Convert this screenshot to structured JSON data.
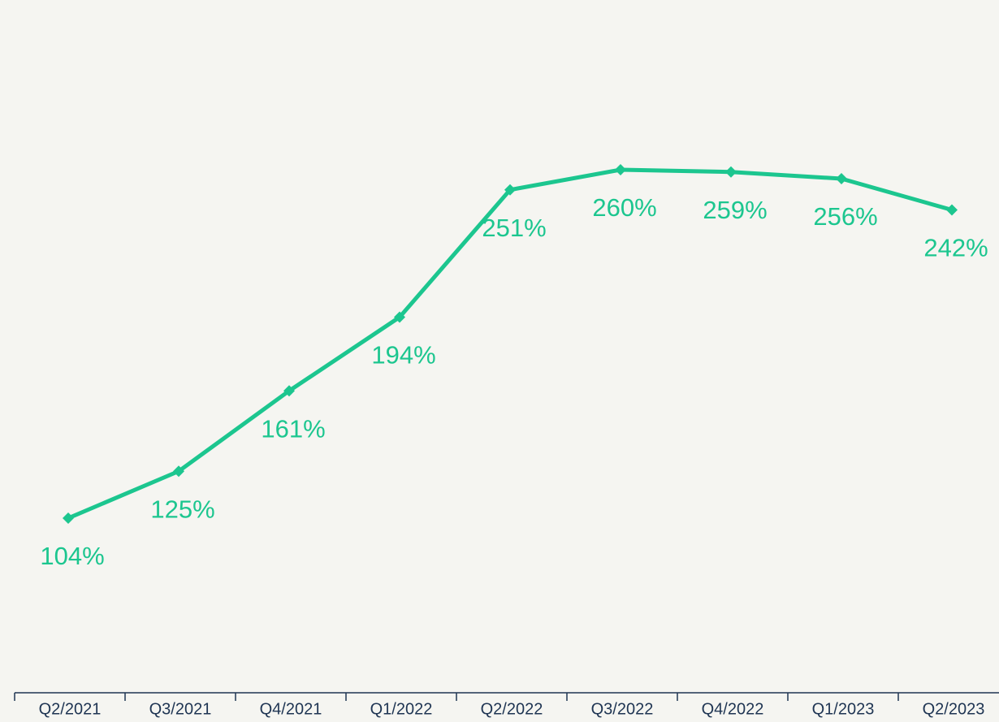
{
  "chart_data": {
    "type": "line",
    "categories": [
      "Q2/2021",
      "Q3/2021",
      "Q4/2021",
      "Q1/2022",
      "Q2/2022",
      "Q3/2022",
      "Q4/2022",
      "Q1/2023",
      "Q2/2023"
    ],
    "values": [
      104,
      125,
      161,
      194,
      251,
      260,
      259,
      256,
      242
    ],
    "value_labels": [
      "104%",
      "125%",
      "161%",
      "194%",
      "251%",
      "260%",
      "259%",
      "256%",
      "242%"
    ],
    "color": "#1cc68f"
  }
}
